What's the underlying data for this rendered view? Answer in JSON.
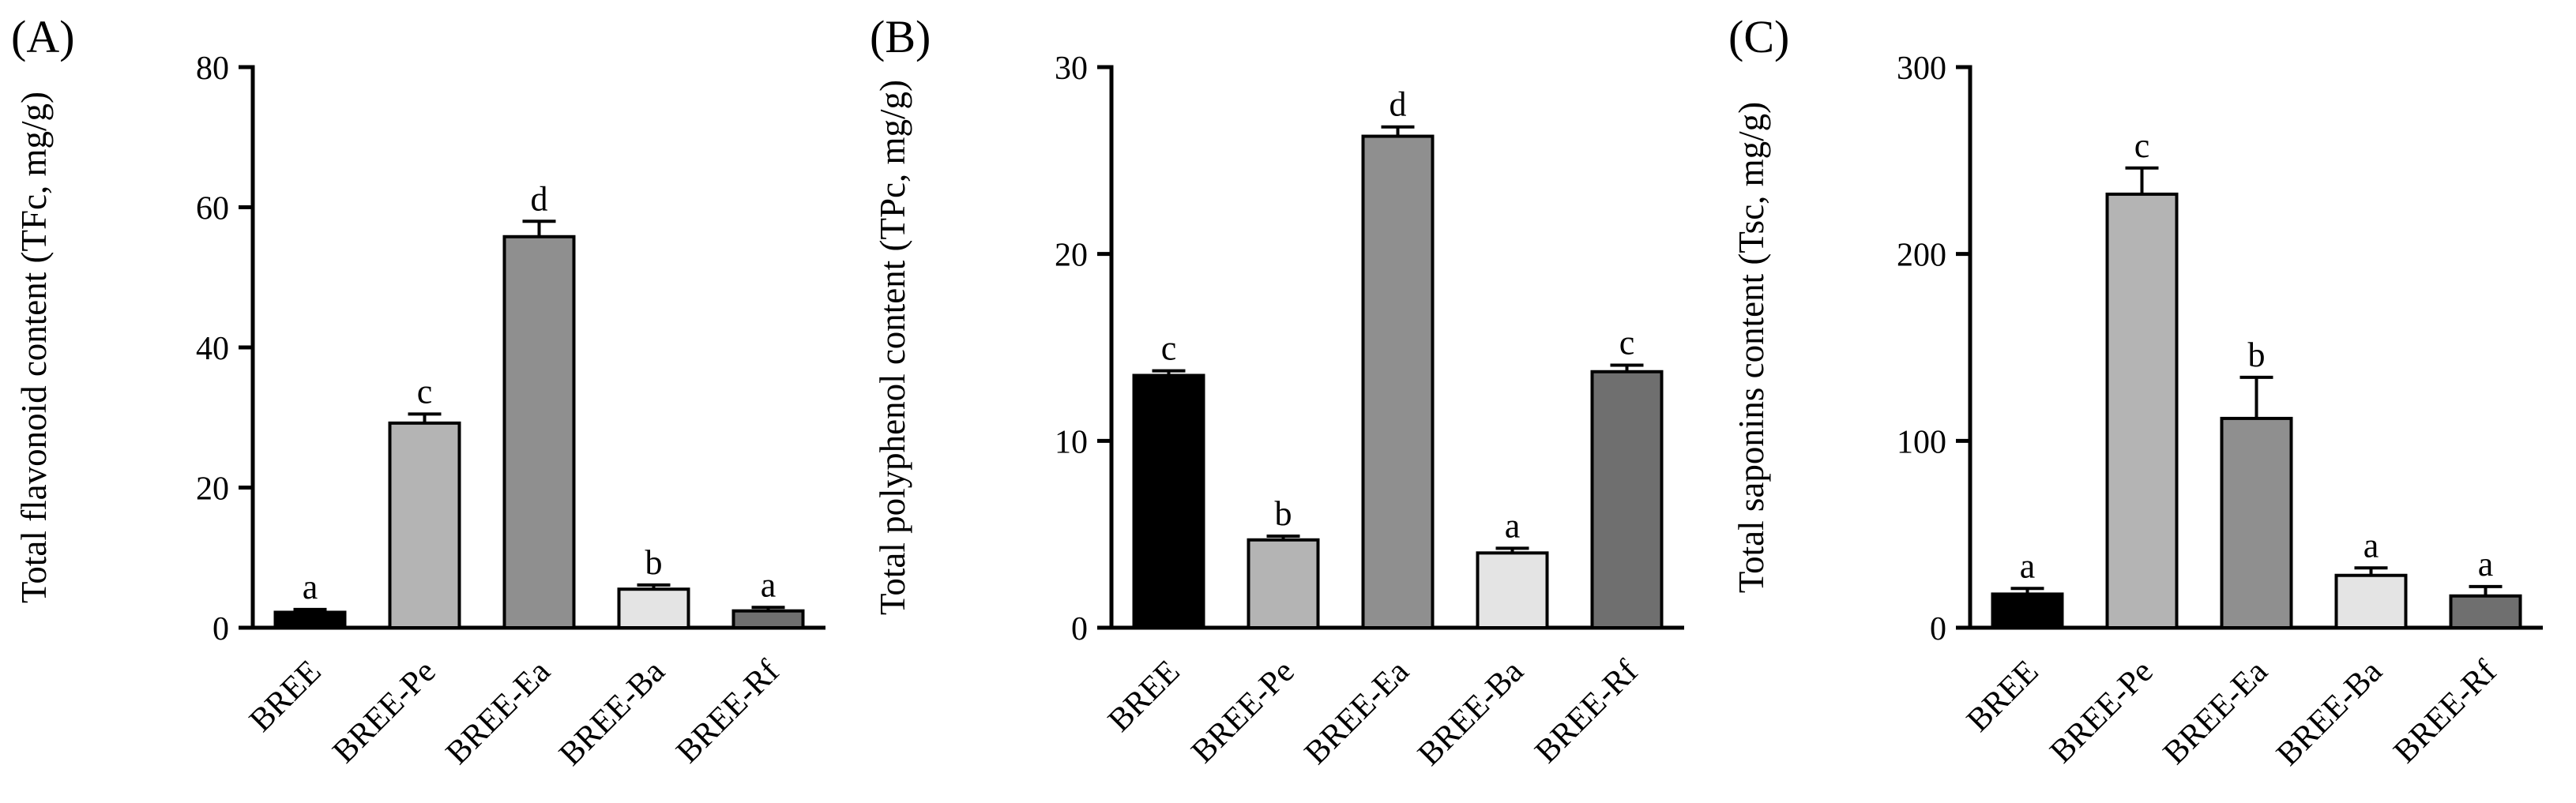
{
  "figure": {
    "background": "#ffffff",
    "panel_count": 3
  },
  "style": {
    "bar_colors": [
      "#000000",
      "#b4b4b4",
      "#8f8f8f",
      "#e4e4e4",
      "#6f6f6f"
    ],
    "bar_stroke": "#000000",
    "axis_color": "#000000",
    "text_color": "#000000"
  },
  "chart_data": [
    {
      "type": "bar",
      "panel_label": "(A)",
      "title": "",
      "xlabel": "",
      "ylabel": "Total flavonoid content (TFc, mg/g)",
      "categories": [
        "BREE",
        "BREE-Pe",
        "BREE-Ea",
        "BREE-Ba",
        "BREE-Rf"
      ],
      "values": [
        2.2,
        29.2,
        55.8,
        5.5,
        2.4
      ],
      "errors": [
        0.4,
        1.3,
        2.2,
        0.6,
        0.5
      ],
      "sig_letters": [
        "a",
        "c",
        "d",
        "b",
        "a"
      ],
      "ylim": [
        0,
        80
      ],
      "yticks": [
        0,
        20,
        40,
        60,
        80
      ],
      "grid": false,
      "legend": "none"
    },
    {
      "type": "bar",
      "panel_label": "(B)",
      "title": "",
      "xlabel": "",
      "ylabel": "Total polyphenol content (TPc, mg/g)",
      "categories": [
        "BREE",
        "BREE-Pe",
        "BREE-Ea",
        "BREE-Ba",
        "BREE-Rf"
      ],
      "values": [
        13.5,
        4.7,
        26.3,
        4.0,
        13.7
      ],
      "errors": [
        0.25,
        0.2,
        0.5,
        0.25,
        0.35
      ],
      "sig_letters": [
        "c",
        "b",
        "d",
        "a",
        "c"
      ],
      "ylim": [
        0,
        30
      ],
      "yticks": [
        0,
        10,
        20,
        30
      ],
      "grid": false,
      "legend": "none"
    },
    {
      "type": "bar",
      "panel_label": "(C)",
      "title": "",
      "xlabel": "",
      "ylabel": "Total saponins content (Tsc, mg/g)",
      "categories": [
        "BREE",
        "BREE-Pe",
        "BREE-Ea",
        "BREE-Ba",
        "BREE-Rf"
      ],
      "values": [
        18,
        232,
        112,
        28,
        17
      ],
      "errors": [
        3,
        14,
        22,
        4,
        5
      ],
      "sig_letters": [
        "a",
        "c",
        "b",
        "a",
        "a"
      ],
      "ylim": [
        0,
        300
      ],
      "yticks": [
        0,
        100,
        200,
        300
      ],
      "grid": false,
      "legend": "none"
    }
  ]
}
